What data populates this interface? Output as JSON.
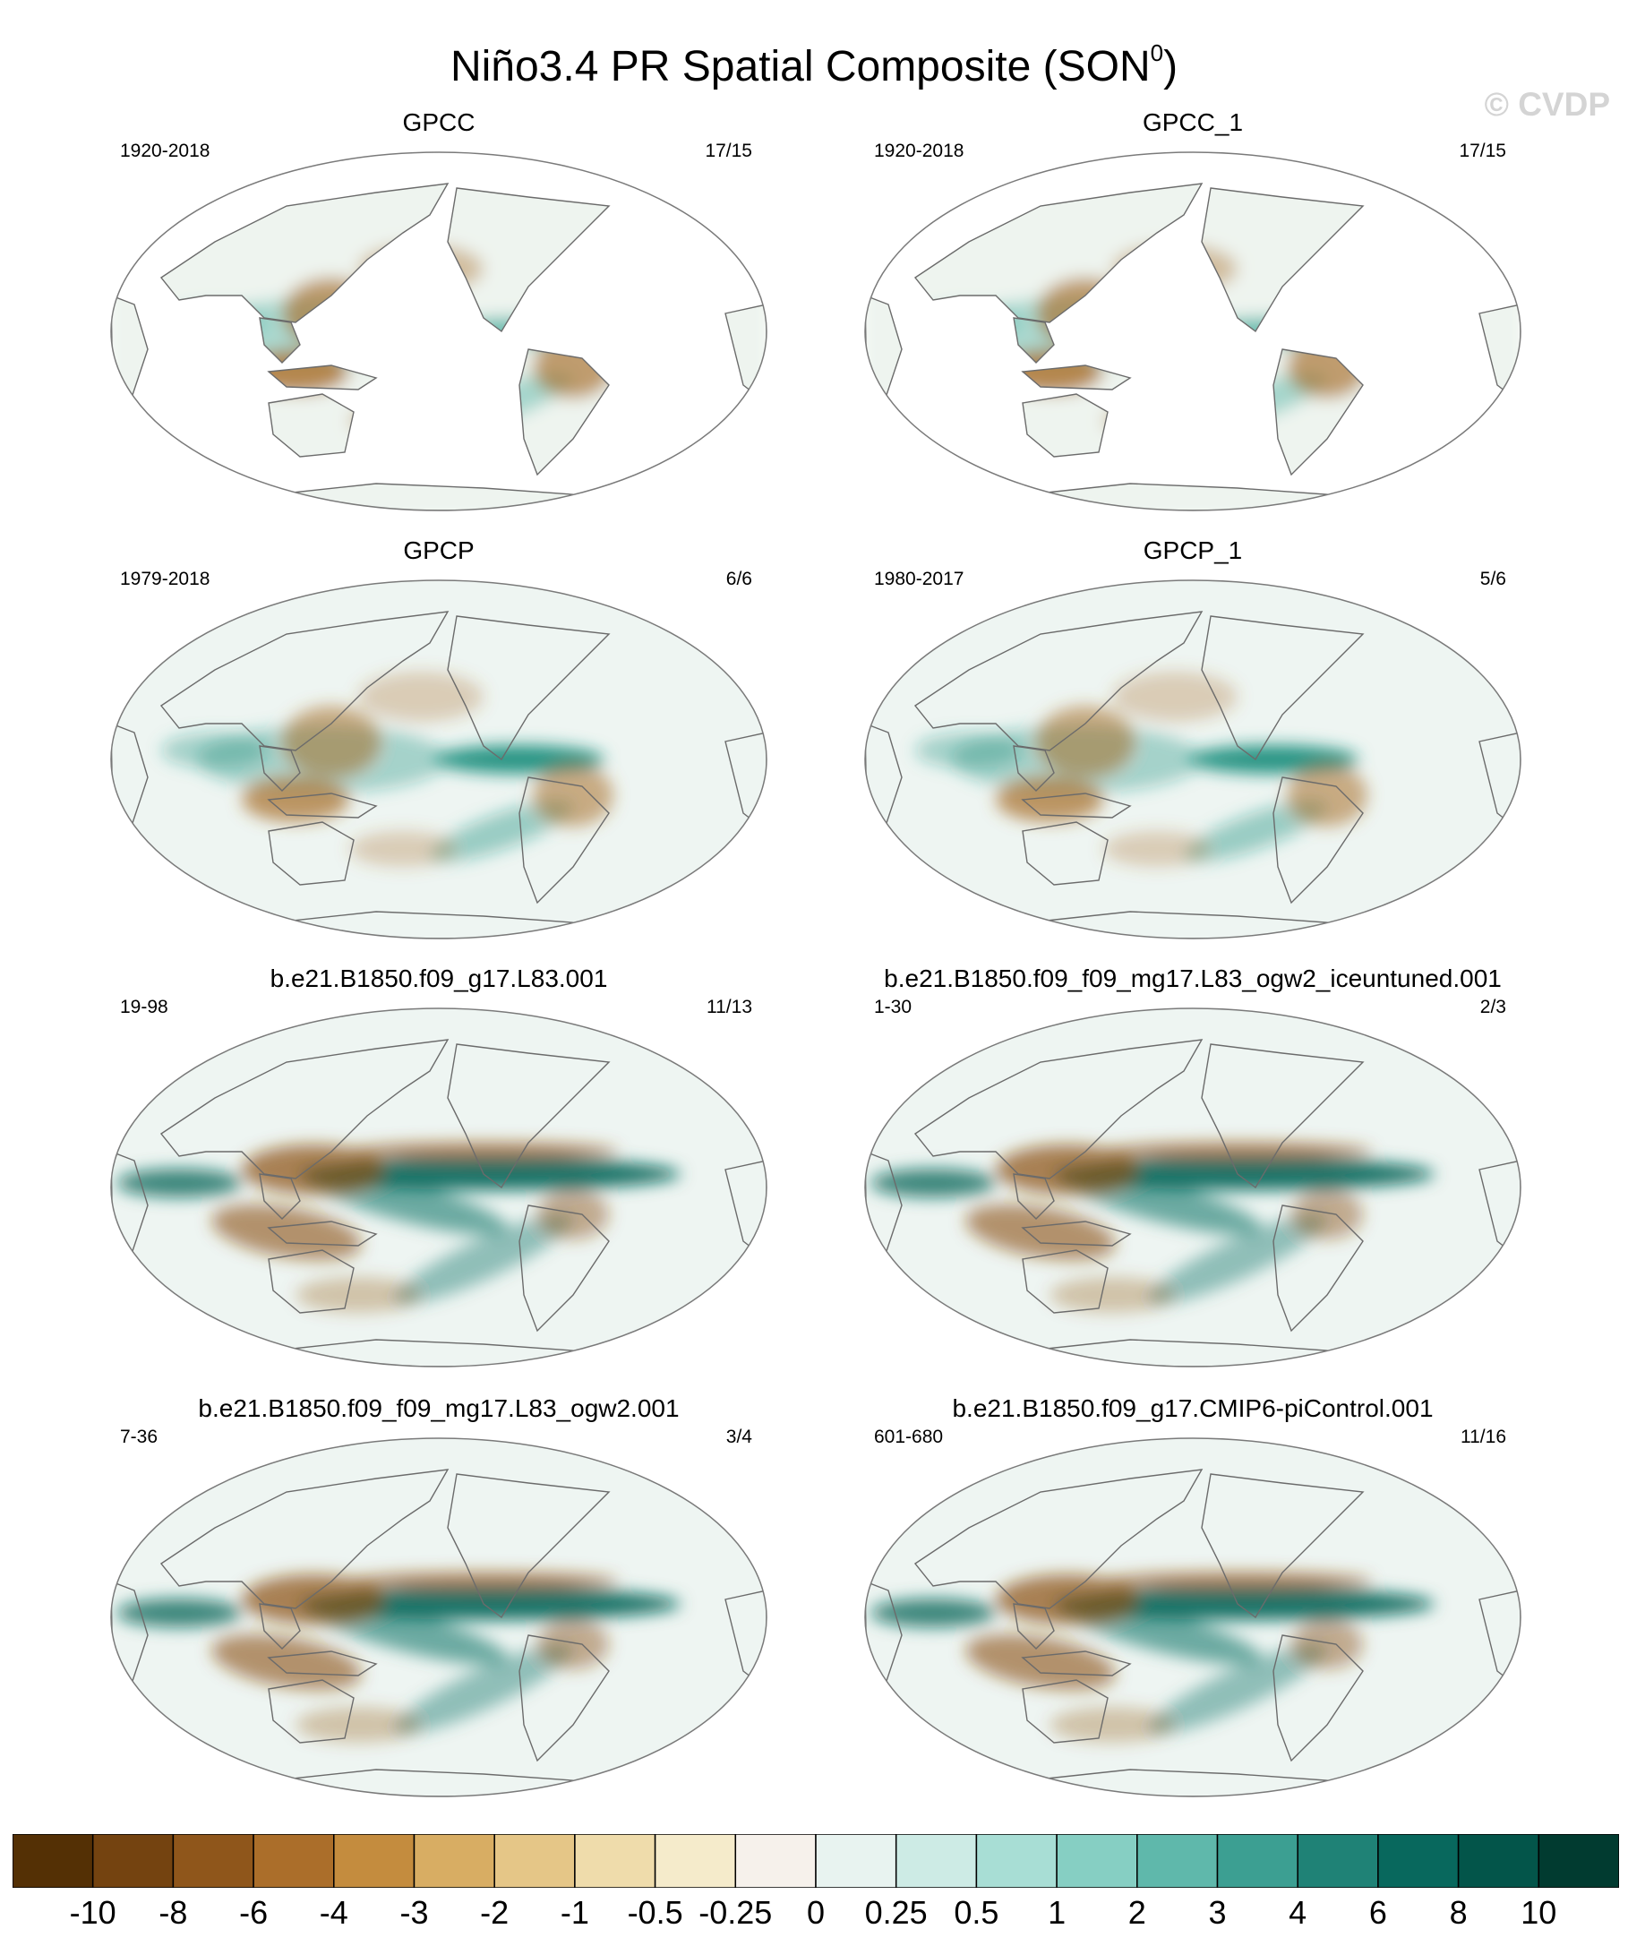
{
  "figure": {
    "title": "Niño3.4 PR Spatial Composite (SON",
    "title_sup": "0",
    "title_close": ")",
    "watermark": "© CVDP"
  },
  "panels": [
    {
      "title": "GPCC",
      "years": "1920-2018",
      "count": "17/15",
      "coverage": "land",
      "pattern": "obs",
      "colors": {
        "dry": "#a86d28",
        "wet": "#5cb8aa"
      }
    },
    {
      "title": "GPCC_1",
      "years": "1920-2018",
      "count": "17/15",
      "coverage": "land",
      "pattern": "obs",
      "colors": {
        "dry": "#a86d28",
        "wet": "#5cb8aa"
      }
    },
    {
      "title": "GPCP",
      "years": "1979-2018",
      "count": "6/6",
      "coverage": "global",
      "pattern": "obs",
      "colors": {
        "dry": "#a86d28",
        "wet": "#1f8f7e"
      }
    },
    {
      "title": "GPCP_1",
      "years": "1980-2017",
      "count": "5/6",
      "coverage": "global",
      "pattern": "obs",
      "colors": {
        "dry": "#a86d28",
        "wet": "#1f8f7e"
      }
    },
    {
      "title": "b.e21.B1850.f09_g17.L83.001",
      "years": "19-98",
      "count": "11/13",
      "coverage": "global",
      "pattern": "model",
      "colors": {
        "dry": "#8a4f12",
        "wet": "#0b6b5f"
      }
    },
    {
      "title": "b.e21.B1850.f09_f09_mg17.L83_ogw2_iceuntuned.001",
      "years": "1-30",
      "count": "2/3",
      "coverage": "global",
      "pattern": "model",
      "colors": {
        "dry": "#8a4f12",
        "wet": "#0b6b5f"
      }
    },
    {
      "title": "b.e21.B1850.f09_f09_mg17.L83_ogw2.001",
      "years": "7-36",
      "count": "3/4",
      "coverage": "global",
      "pattern": "model",
      "colors": {
        "dry": "#8a4f12",
        "wet": "#0b6b5f"
      }
    },
    {
      "title": "b.e21.B1850.f09_g17.CMIP6-piControl.001",
      "years": "601-680",
      "count": "11/16",
      "coverage": "global",
      "pattern": "model",
      "colors": {
        "dry": "#8a4f12",
        "wet": "#0b6b5f"
      }
    }
  ],
  "colorbar": {
    "labels": [
      "-10",
      "-8",
      "-6",
      "-4",
      "-3",
      "-2",
      "-1",
      "-0.5",
      "-0.25",
      "0",
      "0.25",
      "0.5",
      "1",
      "2",
      "3",
      "4",
      "6",
      "8",
      "10"
    ],
    "colors": [
      "#543005",
      "#744310",
      "#8f561b",
      "#ab6e2a",
      "#c48c3e",
      "#d8ad63",
      "#e5c687",
      "#efdcab",
      "#f5ebcb",
      "#f6f1eb",
      "#e8f3f0",
      "#cdebe5",
      "#a8ded5",
      "#86cfc3",
      "#5fb8ab",
      "#3c9f92",
      "#1f8276",
      "#08685d",
      "#03554a",
      "#013b30"
    ]
  }
}
